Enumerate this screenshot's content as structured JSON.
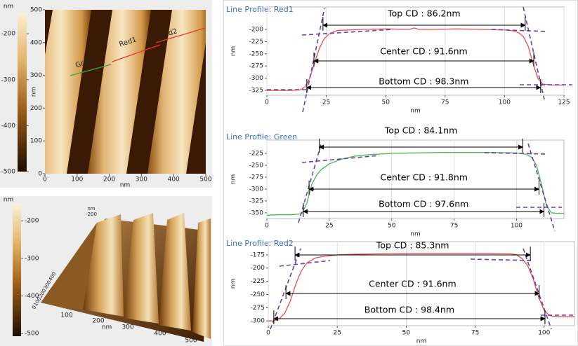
{
  "images": [
    {
      "type": "afm-2d",
      "colorbar_label": "nm",
      "colorbar_ticks": [
        -200,
        -300,
        -400,
        -500
      ],
      "colorbar_lim": [
        -500,
        -154
      ],
      "xlim": [
        0,
        500
      ],
      "xticks": [
        0,
        100,
        200,
        300,
        400,
        500
      ],
      "ylim": [
        0,
        500
      ],
      "yticks": [
        0,
        100,
        200,
        300,
        400,
        500
      ],
      "xlabel": "nm",
      "ylabel": "nm",
      "lines": [
        {
          "name": "Green",
          "color": "#3aa63a"
        },
        {
          "name": "Red1",
          "color": "#e03a30"
        },
        {
          "name": "Red2",
          "color": "#e03a30"
        }
      ]
    },
    {
      "type": "afm-3d",
      "colorbar_label": "nm",
      "colorbar_ticks": [
        -200,
        -300,
        -400,
        -500
      ],
      "colorbar_lim": [
        -507,
        -153
      ],
      "xticks": [
        100,
        200,
        300,
        400,
        500
      ],
      "xlabel": "nm",
      "yticks": [
        0,
        100,
        200,
        300,
        400
      ],
      "zlabel": "nm",
      "zticks": [
        -200
      ]
    }
  ],
  "chart_data": [
    {
      "type": "line",
      "title": "Line Profile: Red1",
      "xlabel": "nm",
      "ylabel": "nm",
      "color": "#e8504a",
      "x": [
        0,
        5,
        10,
        14,
        16,
        18,
        20,
        22,
        24,
        26,
        28,
        30,
        40,
        50,
        60,
        62,
        64,
        70,
        80,
        90,
        100,
        104,
        106,
        108,
        110,
        112,
        114,
        116,
        120,
        125
      ],
      "values": [
        -325,
        -325,
        -325,
        -324,
        -318,
        -300,
        -270,
        -240,
        -220,
        -210,
        -205,
        -202,
        -200,
        -199,
        -200,
        -197,
        -200,
        -200,
        -199,
        -200,
        -201,
        -203,
        -207,
        -215,
        -235,
        -270,
        -300,
        -312,
        -314,
        -314
      ],
      "xlim": [
        0,
        125
      ],
      "xticks": [
        0,
        25,
        50,
        75,
        100,
        125
      ],
      "ylim": [
        -335,
        -154
      ],
      "yticks": [
        -325,
        -300,
        -275,
        -250,
        -225,
        -200
      ],
      "grid": "x",
      "annotations": [
        "Top CD : 86.2nm",
        "Center CD : 91.6nm",
        "Bottom CD : 98.3nm"
      ]
    },
    {
      "type": "line",
      "title": "Line Profile: Green",
      "xlabel": "nm",
      "ylabel": "nm",
      "color": "#49b84a",
      "x": [
        0,
        5,
        10,
        14,
        16,
        18,
        20,
        22,
        25,
        30,
        35,
        40,
        50,
        60,
        70,
        80,
        90,
        100,
        104,
        106,
        108,
        110,
        112,
        114,
        116,
        119
      ],
      "values": [
        -355,
        -354,
        -354,
        -352,
        -330,
        -290,
        -270,
        -258,
        -247,
        -237,
        -231,
        -228,
        -225,
        -224,
        -223,
        -223,
        -223,
        -224,
        -227,
        -233,
        -250,
        -290,
        -335,
        -350,
        -351,
        -351
      ],
      "xlim": [
        0,
        119
      ],
      "xticks": [
        0,
        25,
        50,
        75,
        100
      ],
      "ylim": [
        -362,
        -197
      ],
      "yticks": [
        -350,
        -325,
        -300,
        -275,
        -250,
        -225
      ],
      "grid": "x",
      "annotations": [
        "Top CD : 84.1nm",
        "Center CD : 91.8nm",
        "Bottom CD : 97.6nm"
      ]
    },
    {
      "type": "line",
      "title": "Line Profile: Red2",
      "xlabel": "nm",
      "ylabel": "nm",
      "color": "#e8504a",
      "x": [
        0,
        2,
        4,
        6,
        8,
        10,
        12,
        14,
        17,
        20,
        25,
        30,
        40,
        50,
        60,
        70,
        80,
        88,
        90,
        92,
        94,
        96,
        98,
        100,
        102,
        105,
        108,
        111
      ],
      "values": [
        -300,
        -300,
        -296,
        -285,
        -262,
        -230,
        -205,
        -190,
        -181,
        -178,
        -175,
        -174,
        -173,
        -172,
        -172,
        -172,
        -172,
        -173,
        -175,
        -182,
        -195,
        -220,
        -255,
        -280,
        -290,
        -292,
        -292,
        -292
      ],
      "xlim": [
        0,
        111
      ],
      "xticks": [
        0,
        25,
        50,
        75,
        100
      ],
      "ylim": [
        -309,
        -150
      ],
      "yticks": [
        -300,
        -275,
        -250,
        -225,
        -200,
        -175
      ],
      "grid": "x",
      "annotations": [
        "Top CD : 85.3nm",
        "Center CD : 91.6nm",
        "Bottom CD : 98.4nm"
      ]
    }
  ]
}
